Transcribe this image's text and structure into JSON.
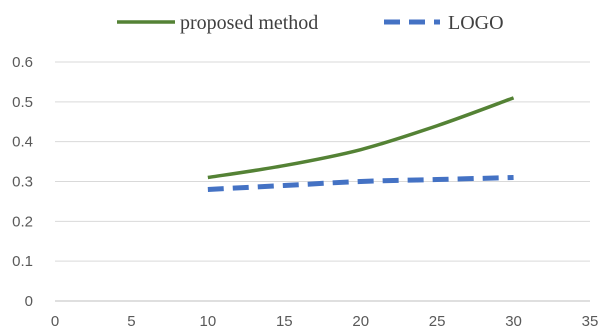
{
  "chart_data": {
    "type": "line",
    "title": "",
    "xlabel": "",
    "ylabel": "",
    "xlim": [
      0,
      35
    ],
    "ylim": [
      0,
      0.6
    ],
    "x_ticks": [
      0,
      5,
      10,
      15,
      20,
      25,
      30,
      35
    ],
    "y_ticks": [
      0,
      0.1,
      0.2,
      0.3,
      0.4,
      0.5,
      0.6
    ],
    "x_tick_labels": [
      "0",
      "5",
      "10",
      "15",
      "20",
      "25",
      "30",
      "35"
    ],
    "y_tick_labels": [
      "0",
      "0.1",
      "0.2",
      "0.3",
      "0.4",
      "0.5",
      "0.6"
    ],
    "grid": "horizontal",
    "legend_position": "top",
    "series": [
      {
        "name": "proposed method",
        "color": "#548235",
        "line_style": "solid",
        "x": [
          10,
          15,
          20,
          25,
          30
        ],
        "y": [
          0.31,
          0.34,
          0.38,
          0.44,
          0.51
        ]
      },
      {
        "name": "LOGO",
        "color": "#4472c4",
        "line_style": "dashed",
        "x": [
          10,
          15,
          20,
          25,
          30
        ],
        "y": [
          0.28,
          0.29,
          0.3,
          0.305,
          0.31
        ]
      }
    ]
  }
}
